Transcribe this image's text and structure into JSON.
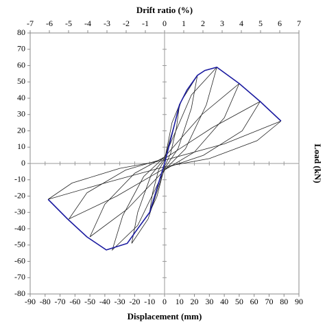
{
  "chart_data": {
    "type": "line",
    "xlabel": "Displacement (mm)",
    "x2label": "Drift ratio (%)",
    "ylabel": "Load (kN)",
    "xlim": [
      -90,
      90
    ],
    "xticks": [
      -90,
      -80,
      -70,
      -60,
      -50,
      -40,
      -30,
      -20,
      -10,
      0,
      10,
      20,
      30,
      40,
      50,
      60,
      70,
      80,
      90
    ],
    "x2lim": [
      -7,
      7
    ],
    "x2ticks": [
      -7,
      -6,
      -5,
      -4,
      -3,
      -2,
      -1,
      0,
      1,
      2,
      3,
      4,
      5,
      6,
      7
    ],
    "ylim": [
      -80,
      80
    ],
    "yticks": [
      -80,
      -70,
      -60,
      -50,
      -40,
      -30,
      -20,
      -10,
      0,
      10,
      20,
      30,
      40,
      50,
      60,
      70,
      80
    ],
    "series": [
      {
        "color": "#222222",
        "x": [
          0,
          5,
          10,
          8,
          4,
          0,
          -5,
          -10,
          -8,
          -4,
          0
        ],
        "values": [
          2,
          25,
          36,
          22,
          6,
          -2,
          -20,
          -30,
          -18,
          -4,
          2
        ]
      },
      {
        "color": "#222222",
        "x": [
          0,
          11,
          22,
          18,
          9,
          0,
          -11,
          -22,
          -18,
          -9,
          0
        ],
        "values": [
          3,
          38,
          54,
          34,
          9,
          -3,
          -34,
          -49,
          -30,
          -7,
          3
        ]
      },
      {
        "color": "#222222",
        "x": [
          0,
          18,
          35,
          28,
          14,
          0,
          -18,
          -35,
          -28,
          -14,
          0
        ],
        "values": [
          4,
          42,
          59,
          36,
          9,
          -4,
          -38,
          -53,
          -32,
          -8,
          4
        ]
      },
      {
        "color": "#222222",
        "x": [
          0,
          25,
          50,
          40,
          20,
          0,
          -25,
          -50,
          -40,
          -20,
          0
        ],
        "values": [
          4,
          30,
          49,
          28,
          7,
          -4,
          -28,
          -45,
          -25,
          -6,
          4
        ]
      },
      {
        "color": "#222222",
        "x": [
          0,
          32,
          64,
          52,
          26,
          0,
          -32,
          -64,
          -52,
          -26,
          0
        ],
        "values": [
          3,
          22,
          38,
          20,
          5,
          -3,
          -20,
          -34,
          -18,
          -4,
          3
        ]
      },
      {
        "color": "#222222",
        "x": [
          0,
          40,
          78,
          62,
          30,
          0,
          -40,
          -78,
          -62,
          -30,
          0
        ],
        "values": [
          2,
          12,
          26,
          14,
          3,
          -2,
          -12,
          -22,
          -12,
          -3,
          2
        ]
      },
      {
        "color": "#1a1aa0",
        "x": [
          -78,
          -65,
          -52,
          -39,
          -25,
          -18,
          -10,
          0,
          10,
          15,
          22,
          27,
          35,
          50,
          64,
          78
        ],
        "values": [
          -22,
          -34,
          -45,
          -53,
          -49,
          -40,
          -30,
          0,
          36,
          45,
          54,
          57,
          59,
          49,
          38,
          26
        ]
      }
    ]
  }
}
